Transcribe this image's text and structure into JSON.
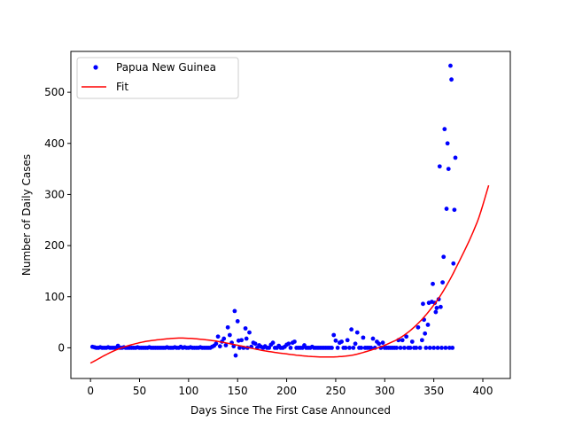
{
  "chart_data": {
    "type": "scatter",
    "xlabel": "Days Since The First Case Announced",
    "ylabel": "Number of Daily Cases",
    "xlim": [
      -20,
      428
    ],
    "ylim": [
      -60,
      580
    ],
    "xticks": [
      0,
      50,
      100,
      150,
      200,
      250,
      300,
      350,
      400
    ],
    "yticks": [
      0,
      100,
      200,
      300,
      400,
      500
    ],
    "legend_position": "top-left",
    "grid": false,
    "series": [
      {
        "name": "Papua New Guinea",
        "kind": "points",
        "color": "#0000ff",
        "points": [
          [
            2,
            2
          ],
          [
            4,
            1
          ],
          [
            6,
            0
          ],
          [
            8,
            0
          ],
          [
            10,
            1
          ],
          [
            12,
            0
          ],
          [
            14,
            0
          ],
          [
            16,
            0
          ],
          [
            18,
            1
          ],
          [
            20,
            0
          ],
          [
            22,
            0
          ],
          [
            24,
            0
          ],
          [
            26,
            0
          ],
          [
            28,
            4
          ],
          [
            30,
            0
          ],
          [
            32,
            0
          ],
          [
            34,
            1
          ],
          [
            36,
            0
          ],
          [
            38,
            0
          ],
          [
            40,
            0
          ],
          [
            42,
            0
          ],
          [
            44,
            0
          ],
          [
            46,
            0
          ],
          [
            48,
            1
          ],
          [
            50,
            0
          ],
          [
            52,
            0
          ],
          [
            54,
            0
          ],
          [
            56,
            0
          ],
          [
            58,
            0
          ],
          [
            60,
            1
          ],
          [
            62,
            0
          ],
          [
            64,
            0
          ],
          [
            66,
            0
          ],
          [
            68,
            0
          ],
          [
            70,
            0
          ],
          [
            72,
            0
          ],
          [
            74,
            0
          ],
          [
            76,
            0
          ],
          [
            78,
            1
          ],
          [
            80,
            0
          ],
          [
            82,
            0
          ],
          [
            84,
            0
          ],
          [
            86,
            1
          ],
          [
            88,
            0
          ],
          [
            90,
            0
          ],
          [
            92,
            2
          ],
          [
            94,
            0
          ],
          [
            96,
            1
          ],
          [
            98,
            0
          ],
          [
            100,
            0
          ],
          [
            102,
            1
          ],
          [
            104,
            0
          ],
          [
            106,
            0
          ],
          [
            108,
            0
          ],
          [
            110,
            0
          ],
          [
            112,
            1
          ],
          [
            114,
            0
          ],
          [
            116,
            0
          ],
          [
            118,
            0
          ],
          [
            120,
            0
          ],
          [
            122,
            0
          ],
          [
            124,
            2
          ],
          [
            126,
            4
          ],
          [
            128,
            8
          ],
          [
            130,
            22
          ],
          [
            132,
            3
          ],
          [
            134,
            12
          ],
          [
            136,
            18
          ],
          [
            138,
            5
          ],
          [
            140,
            40
          ],
          [
            142,
            25
          ],
          [
            144,
            10
          ],
          [
            146,
            3
          ],
          [
            147,
            72
          ],
          [
            148,
            -15
          ],
          [
            150,
            52
          ],
          [
            151,
            14
          ],
          [
            152,
            0
          ],
          [
            154,
            15
          ],
          [
            156,
            0
          ],
          [
            158,
            38
          ],
          [
            159,
            18
          ],
          [
            160,
            0
          ],
          [
            162,
            30
          ],
          [
            164,
            2
          ],
          [
            166,
            10
          ],
          [
            168,
            8
          ],
          [
            170,
            0
          ],
          [
            172,
            5
          ],
          [
            174,
            2
          ],
          [
            176,
            0
          ],
          [
            178,
            3
          ],
          [
            180,
            0
          ],
          [
            182,
            0
          ],
          [
            184,
            6
          ],
          [
            186,
            10
          ],
          [
            188,
            0
          ],
          [
            190,
            0
          ],
          [
            192,
            4
          ],
          [
            194,
            0
          ],
          [
            196,
            0
          ],
          [
            198,
            2
          ],
          [
            200,
            6
          ],
          [
            202,
            8
          ],
          [
            204,
            0
          ],
          [
            206,
            10
          ],
          [
            208,
            12
          ],
          [
            210,
            0
          ],
          [
            212,
            0
          ],
          [
            214,
            0
          ],
          [
            216,
            0
          ],
          [
            218,
            5
          ],
          [
            220,
            0
          ],
          [
            222,
            0
          ],
          [
            224,
            0
          ],
          [
            226,
            2
          ],
          [
            228,
            0
          ],
          [
            230,
            0
          ],
          [
            232,
            0
          ],
          [
            234,
            0
          ],
          [
            236,
            0
          ],
          [
            238,
            0
          ],
          [
            240,
            0
          ],
          [
            242,
            0
          ],
          [
            244,
            0
          ],
          [
            246,
            0
          ],
          [
            248,
            25
          ],
          [
            250,
            14
          ],
          [
            252,
            0
          ],
          [
            254,
            10
          ],
          [
            256,
            12
          ],
          [
            258,
            0
          ],
          [
            260,
            0
          ],
          [
            262,
            15
          ],
          [
            264,
            0
          ],
          [
            266,
            36
          ],
          [
            268,
            0
          ],
          [
            270,
            8
          ],
          [
            272,
            30
          ],
          [
            274,
            0
          ],
          [
            276,
            0
          ],
          [
            278,
            20
          ],
          [
            280,
            0
          ],
          [
            282,
            0
          ],
          [
            284,
            0
          ],
          [
            286,
            0
          ],
          [
            288,
            18
          ],
          [
            290,
            0
          ],
          [
            292,
            12
          ],
          [
            294,
            8
          ],
          [
            296,
            0
          ],
          [
            298,
            10
          ],
          [
            300,
            0
          ],
          [
            302,
            0
          ],
          [
            304,
            0
          ],
          [
            306,
            0
          ],
          [
            308,
            0
          ],
          [
            310,
            0
          ],
          [
            312,
            0
          ],
          [
            314,
            15
          ],
          [
            316,
            0
          ],
          [
            318,
            15
          ],
          [
            320,
            0
          ],
          [
            322,
            22
          ],
          [
            324,
            0
          ],
          [
            326,
            0
          ],
          [
            328,
            12
          ],
          [
            330,
            0
          ],
          [
            332,
            0
          ],
          [
            334,
            40
          ],
          [
            336,
            0
          ],
          [
            338,
            15
          ],
          [
            339,
            86
          ],
          [
            340,
            55
          ],
          [
            341,
            28
          ],
          [
            342,
            0
          ],
          [
            344,
            45
          ],
          [
            345,
            88
          ],
          [
            346,
            0
          ],
          [
            348,
            90
          ],
          [
            349,
            125
          ],
          [
            350,
            0
          ],
          [
            351,
            88
          ],
          [
            352,
            70
          ],
          [
            353,
            78
          ],
          [
            354,
            0
          ],
          [
            355,
            95
          ],
          [
            356,
            355
          ],
          [
            357,
            80
          ],
          [
            358,
            0
          ],
          [
            359,
            128
          ],
          [
            360,
            178
          ],
          [
            361,
            428
          ],
          [
            362,
            0
          ],
          [
            363,
            272
          ],
          [
            364,
            400
          ],
          [
            365,
            350
          ],
          [
            366,
            0
          ],
          [
            367,
            552
          ],
          [
            368,
            525
          ],
          [
            369,
            0
          ],
          [
            370,
            165
          ],
          [
            371,
            270
          ],
          [
            372,
            372
          ]
        ]
      },
      {
        "name": "Fit",
        "kind": "line",
        "color": "#ff0000",
        "x_range": [
          0,
          406
        ],
        "points": [
          [
            0,
            -30
          ],
          [
            25,
            -5
          ],
          [
            50,
            10
          ],
          [
            75,
            17
          ],
          [
            95,
            19
          ],
          [
            125,
            14
          ],
          [
            150,
            5
          ],
          [
            175,
            -5
          ],
          [
            200,
            -12
          ],
          [
            225,
            -17
          ],
          [
            245,
            -18
          ],
          [
            265,
            -15
          ],
          [
            280,
            -8
          ],
          [
            300,
            5
          ],
          [
            320,
            25
          ],
          [
            340,
            60
          ],
          [
            360,
            112
          ],
          [
            380,
            185
          ],
          [
            395,
            250
          ],
          [
            406,
            318
          ]
        ]
      }
    ]
  }
}
